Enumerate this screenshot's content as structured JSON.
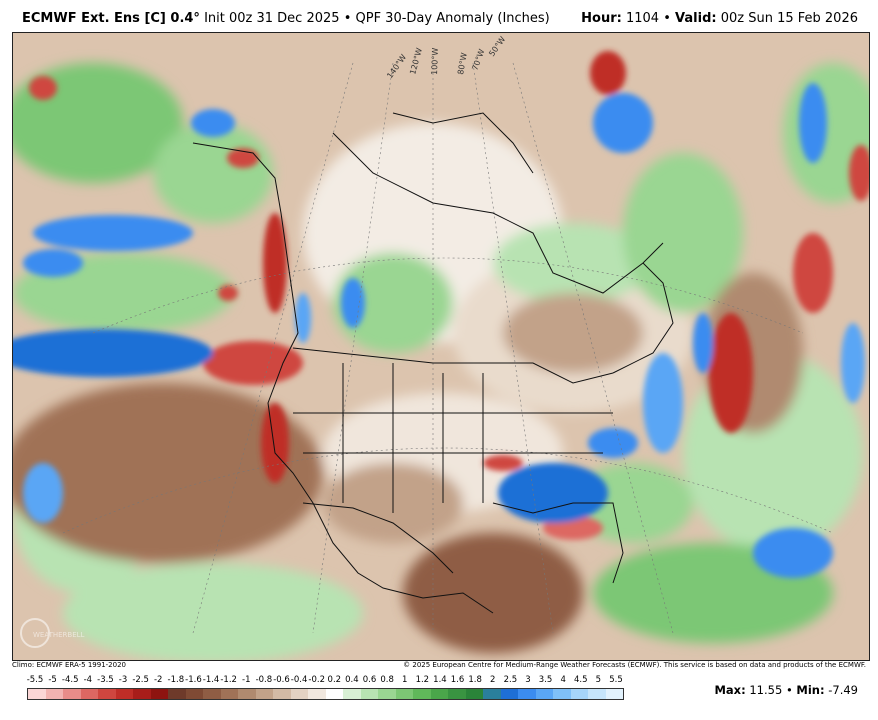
{
  "header": {
    "model": "ECMWF Ext. Ens [C] 0.4°",
    "init": "Init 00z 31 Dec 2025",
    "bullet": "•",
    "product": "QPF 30-Day Anomaly (Inches)",
    "hour_label": "Hour:",
    "hour_value": "1104",
    "valid_label": "Valid:",
    "valid_value": "00z Sun 15 Feb 2026"
  },
  "map": {
    "longitude_labels": [
      "140°W",
      "120°W",
      "100°W",
      "80°W",
      "70°W",
      "50°W"
    ],
    "watermark": "WEATHERBELL",
    "shading": {
      "dry_color": "#b5302d",
      "wet_color": "#2a73d8"
    }
  },
  "footer": {
    "climo": "Climo: ECMWF ERA-5 1991-2020",
    "copyright": "© 2025 European Centre for Medium-Range Weather Forecasts (ECMWF). This service is based on data and products of the ECMWF."
  },
  "colorbar": {
    "tick_labels": [
      "-5.5",
      "-5",
      "-4.5",
      "-4",
      "-3.5",
      "-3",
      "-2.5",
      "-2",
      "-1.8",
      "-1.6",
      "-1.4",
      "-1.2",
      "-1",
      "-0.8",
      "-0.6",
      "-0.4",
      "-0.2",
      "0.2",
      "0.4",
      "0.6",
      "0.8",
      "1",
      "1.2",
      "1.4",
      "1.6",
      "1.8",
      "2",
      "2.5",
      "3",
      "3.5",
      "4",
      "4.5",
      "5",
      "5.5"
    ],
    "colors": [
      "#fbd6d6",
      "#f2b3b1",
      "#e88c89",
      "#dd6762",
      "#cf463f",
      "#bf2d27",
      "#a81d1a",
      "#8e1410",
      "#6e3a2a",
      "#7f4a34",
      "#8f5d44",
      "#a07257",
      "#b08a6f",
      "#c2a289",
      "#d3baa5",
      "#e3d2c3",
      "#f1e8df",
      "#ffffff",
      "#d8f0d4",
      "#b8e3b2",
      "#9ad692",
      "#7cc774",
      "#60b85a",
      "#4aa64a",
      "#399441",
      "#2a8439",
      "#2a7f9c",
      "#1e6fd6",
      "#3b8cf0",
      "#5aa6f5",
      "#7fc0f8",
      "#a6d5fa",
      "#c6e5fb",
      "#e2f2fd"
    ]
  },
  "stats": {
    "max_label": "Max:",
    "max_value": "11.55",
    "min_label": "Min:",
    "min_value": "-7.49"
  }
}
